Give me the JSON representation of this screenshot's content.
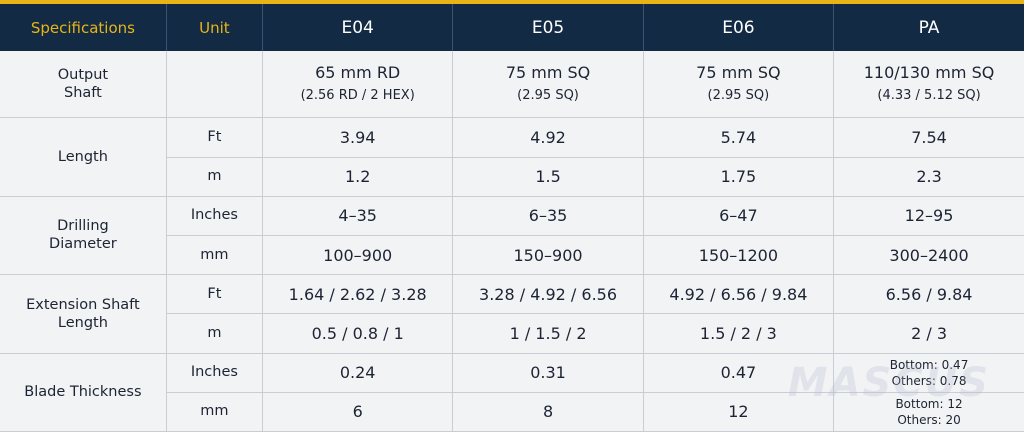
{
  "header": {
    "specifications": "Specifications",
    "unit": "Unit",
    "models": [
      "E04",
      "E05",
      "E06",
      "PA"
    ]
  },
  "rows": {
    "output_shaft": {
      "label_line1": "Output",
      "label_line2": "Shaft",
      "values": [
        {
          "main": "65 mm RD",
          "sub": "(2.56 RD / 2 HEX)"
        },
        {
          "main": "75 mm SQ",
          "sub": "(2.95 SQ)"
        },
        {
          "main": "75 mm SQ",
          "sub": "(2.95 SQ)"
        },
        {
          "main": "110/130 mm SQ",
          "sub": "(4.33 / 5.12 SQ)"
        }
      ]
    },
    "length": {
      "label": "Length",
      "ft": {
        "unit": "Ft",
        "values": [
          "3.94",
          "4.92",
          "5.74",
          "7.54"
        ]
      },
      "m": {
        "unit": "m",
        "values": [
          "1.2",
          "1.5",
          "1.75",
          "2.3"
        ]
      }
    },
    "drilling_diameter": {
      "label_line1": "Drilling",
      "label_line2": "Diameter",
      "inches": {
        "unit": "Inches",
        "values": [
          "4–35",
          "6–35",
          "6–47",
          "12–95"
        ]
      },
      "mm": {
        "unit": "mm",
        "values": [
          "100–900",
          "150–900",
          "150–1200",
          "300–2400"
        ]
      }
    },
    "extension_shaft_length": {
      "label_line1": "Extension Shaft",
      "label_line2": "Length",
      "ft": {
        "unit": "Ft",
        "values": [
          "1.64 / 2.62 / 3.28",
          "3.28 / 4.92 / 6.56",
          "4.92 / 6.56 / 9.84",
          "6.56 / 9.84"
        ]
      },
      "m": {
        "unit": "m",
        "values": [
          "0.5 / 0.8 / 1",
          "1 / 1.5 / 2",
          "1.5 / 2 / 3",
          "2 / 3"
        ]
      }
    },
    "blade_thickness": {
      "label": "Blade Thickness",
      "inches": {
        "unit": "Inches",
        "values": [
          "0.24",
          "0.31",
          "0.47"
        ],
        "pa_line1": "Bottom: 0.47",
        "pa_line2": "Others: 0.78"
      },
      "mm": {
        "unit": "mm",
        "values": [
          "6",
          "8",
          "12"
        ],
        "pa_line1": "Bottom: 12",
        "pa_line2": "Others: 20"
      }
    }
  },
  "watermark": "MASCUS",
  "colors": {
    "header_bg": "#132a45",
    "accent_gold": "#e8b514",
    "cell_bg": "#f2f3f5",
    "grid_line": "#c9ced6"
  }
}
